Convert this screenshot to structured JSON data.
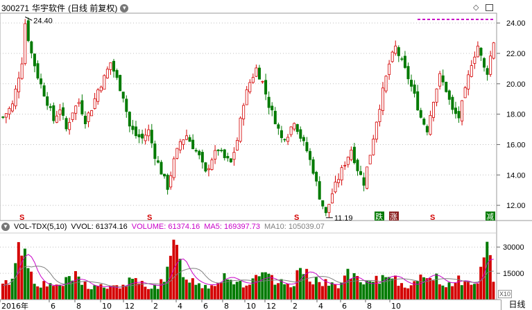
{
  "header": {
    "code": "300271",
    "name": "华宇软件",
    "mode": "(日线 前复权)",
    "menu_icon": "chevron-down-icon"
  },
  "toolbar": {
    "diamond_icon": "diamond-icon",
    "grid_icon": "grid-icon"
  },
  "volume_header": {
    "indicator": "VOL-TDX(5,10)",
    "vvol_label": "VVOL:",
    "vvol": "61374.16",
    "volume_label": "VOLUME:",
    "volume": "61374.16",
    "ma5_label": "MA5:",
    "ma5": "169397.73",
    "ma10_label": "MA10:",
    "ma10": "105039.07"
  },
  "markers": {
    "s": "S",
    "die": "跌",
    "zhang": "涨",
    "jian": "减"
  },
  "zoom_label": "X10",
  "period_tab": "日线",
  "colors": {
    "up": "#d40000",
    "down": "#007a00",
    "grid": "#bfbfbf",
    "ma5": "#c800c8",
    "ma10": "#7f7f7f"
  },
  "chart_data": [
    {
      "type": "candlestick",
      "ylim": [
        11,
        24.6
      ],
      "y_ticks": [
        "24.00",
        "22.00",
        "20.00",
        "18.00",
        "16.00",
        "14.00",
        "12.00"
      ],
      "y_tick_values": [
        24,
        22,
        20,
        18,
        16,
        14,
        12
      ],
      "annotations": [
        {
          "label": "24.40",
          "value": 24.4,
          "type": "high"
        },
        {
          "label": "11.19",
          "value": 11.19,
          "type": "low"
        }
      ],
      "x_labels": [
        "2016年",
        "6",
        "8",
        "10",
        "12",
        "2",
        "4",
        "6",
        "8",
        "10",
        "12",
        "2",
        "4",
        "6",
        "8",
        "10"
      ],
      "close_path": [
        [
          0,
          17.8
        ],
        [
          3,
          18.6
        ],
        [
          6,
          21.5
        ],
        [
          7,
          24.0
        ],
        [
          9,
          22.0
        ],
        [
          11,
          20.5
        ],
        [
          14,
          18.8
        ],
        [
          16,
          17.6
        ],
        [
          18,
          18.4
        ],
        [
          20,
          17.0
        ],
        [
          22,
          18.2
        ],
        [
          24,
          18.8
        ],
        [
          26,
          17.6
        ],
        [
          28,
          18.4
        ],
        [
          30,
          19.6
        ],
        [
          32,
          20.4
        ],
        [
          34,
          21.4
        ],
        [
          36,
          20.3
        ],
        [
          38,
          19.2
        ],
        [
          40,
          17.2
        ],
        [
          42,
          16.6
        ],
        [
          44,
          16.4
        ],
        [
          46,
          16.9
        ],
        [
          48,
          15.3
        ],
        [
          50,
          14.2
        ],
        [
          52,
          13.2
        ],
        [
          54,
          14.9
        ],
        [
          56,
          16.2
        ],
        [
          58,
          16.6
        ],
        [
          60,
          15.9
        ],
        [
          62,
          15.2
        ],
        [
          64,
          14.1
        ],
        [
          66,
          15.1
        ],
        [
          68,
          15.7
        ],
        [
          70,
          15.1
        ],
        [
          72,
          14.8
        ],
        [
          74,
          16.3
        ],
        [
          76,
          18.8
        ],
        [
          78,
          20.1
        ],
        [
          80,
          21.0
        ],
        [
          82,
          20.1
        ],
        [
          84,
          18.6
        ],
        [
          86,
          17.6
        ],
        [
          88,
          16.4
        ],
        [
          90,
          16.7
        ],
        [
          92,
          17.6
        ],
        [
          94,
          16.5
        ],
        [
          96,
          15.6
        ],
        [
          98,
          14.3
        ],
        [
          100,
          12.6
        ],
        [
          102,
          11.4
        ],
        [
          104,
          12.8
        ],
        [
          106,
          13.8
        ],
        [
          108,
          14.8
        ],
        [
          110,
          15.7
        ],
        [
          112,
          14.4
        ],
        [
          114,
          13.5
        ],
        [
          116,
          15.4
        ],
        [
          118,
          17.6
        ],
        [
          120,
          19.5
        ],
        [
          122,
          21.3
        ],
        [
          124,
          22.4
        ],
        [
          126,
          21.4
        ],
        [
          128,
          20.4
        ],
        [
          130,
          19.2
        ],
        [
          132,
          17.8
        ],
        [
          134,
          17.0
        ],
        [
          136,
          19.0
        ],
        [
          138,
          20.5
        ],
        [
          140,
          19.6
        ],
        [
          142,
          18.2
        ],
        [
          144,
          17.8
        ],
        [
          146,
          19.5
        ],
        [
          148,
          21.4
        ],
        [
          150,
          22.5
        ],
        [
          152,
          21.0
        ],
        [
          153,
          20.8
        ],
        [
          155,
          22.8
        ]
      ],
      "last_close": 22.8
    },
    {
      "type": "bar",
      "name": "VOL-TDX(5,10)",
      "ylim": [
        0,
        38000
      ],
      "y_ticks": [
        "30000",
        "15000"
      ],
      "y_tick_values": [
        30000,
        15000
      ],
      "series": [
        {
          "name": "VOLUME",
          "values": [
            8000,
            9000,
            11000,
            14000,
            22000,
            28000,
            33000,
            26000,
            20000,
            15000,
            12000,
            10000,
            9000,
            8500,
            8000,
            7500,
            7800,
            8200,
            9000,
            9500,
            10000,
            11000,
            12000,
            13000,
            12000,
            10000,
            9000,
            8000,
            7000,
            7000,
            7500,
            8000,
            7500,
            7000,
            6500,
            6800,
            7200,
            7800,
            8500,
            9500,
            10000,
            10500,
            10000,
            9500,
            9000,
            8500,
            8200,
            8000,
            7800,
            8000,
            9000,
            11000,
            15000,
            22000,
            30000,
            26000,
            21000,
            17000,
            14000,
            12000,
            10500,
            9500,
            9000,
            8500,
            8200,
            8000,
            8500,
            9500,
            11000,
            13000,
            14000,
            13000,
            12000,
            11000,
            10000,
            9500,
            9000,
            9000,
            9500,
            10000,
            11000,
            12500,
            14000,
            13000,
            12000,
            11000,
            10000,
            9500,
            9000,
            8500,
            8000,
            9000,
            10500,
            13000,
            16000,
            19000,
            17000,
            14000,
            12000,
            11000,
            10000,
            9500,
            9000,
            8500,
            8000,
            8500,
            9000,
            10000,
            12000,
            15000,
            14000,
            12000,
            10500,
            9500,
            9000,
            8500,
            9000,
            9500,
            10500,
            11000,
            12000,
            13000,
            16000,
            14000,
            12000,
            11000,
            10000,
            9000,
            8500,
            8000,
            8500,
            9500,
            11000,
            13000,
            15000,
            16000,
            14000,
            12000,
            10500,
            9500,
            9000,
            9000,
            10000,
            11000,
            12000,
            11000,
            10000,
            9000,
            8500,
            9000,
            11000,
            17000,
            28000,
            38000,
            20000,
            12000
          ]
        },
        {
          "name": "MA5"
        },
        {
          "name": "MA10"
        }
      ]
    }
  ]
}
